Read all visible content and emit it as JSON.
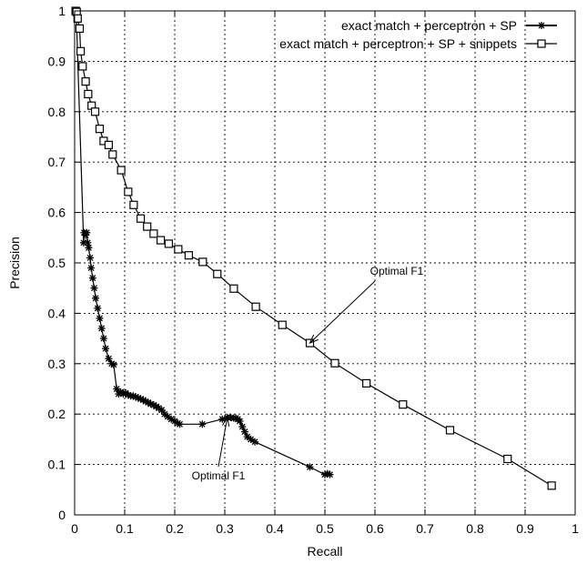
{
  "chart_data": {
    "type": "line",
    "title": "",
    "xlabel": "Recall",
    "ylabel": "Precision",
    "xlim": [
      0,
      1
    ],
    "ylim": [
      0,
      1
    ],
    "x_ticks": [
      "0",
      "0.1",
      "0.2",
      "0.3",
      "0.4",
      "0.5",
      "0.6",
      "0.7",
      "0.8",
      "0.9",
      "1"
    ],
    "y_ticks": [
      "0",
      "0.1",
      "0.2",
      "0.3",
      "0.4",
      "0.5",
      "0.6",
      "0.7",
      "0.8",
      "0.9",
      "1"
    ],
    "grid": true,
    "legend_position": "top-right",
    "series": [
      {
        "name": "exact match + perceptron + SP",
        "marker": "asterisk",
        "color": "#000000",
        "points": [
          [
            0.003,
            1.0
          ],
          [
            0.018,
            0.54
          ],
          [
            0.019,
            0.56
          ],
          [
            0.022,
            0.555
          ],
          [
            0.024,
            0.56
          ],
          [
            0.026,
            0.54
          ],
          [
            0.028,
            0.53
          ],
          [
            0.031,
            0.51
          ],
          [
            0.033,
            0.49
          ],
          [
            0.036,
            0.47
          ],
          [
            0.039,
            0.45
          ],
          [
            0.042,
            0.43
          ],
          [
            0.046,
            0.41
          ],
          [
            0.05,
            0.39
          ],
          [
            0.054,
            0.37
          ],
          [
            0.058,
            0.35
          ],
          [
            0.062,
            0.33
          ],
          [
            0.068,
            0.31
          ],
          [
            0.074,
            0.3
          ],
          [
            0.078,
            0.298
          ],
          [
            0.084,
            0.25
          ],
          [
            0.088,
            0.24
          ],
          [
            0.092,
            0.244
          ],
          [
            0.097,
            0.24
          ],
          [
            0.102,
            0.242
          ],
          [
            0.107,
            0.238
          ],
          [
            0.112,
            0.236
          ],
          [
            0.117,
            0.236
          ],
          [
            0.122,
            0.234
          ],
          [
            0.127,
            0.232
          ],
          [
            0.132,
            0.23
          ],
          [
            0.137,
            0.228
          ],
          [
            0.142,
            0.225
          ],
          [
            0.147,
            0.223
          ],
          [
            0.152,
            0.22
          ],
          [
            0.158,
            0.218
          ],
          [
            0.163,
            0.215
          ],
          [
            0.168,
            0.212
          ],
          [
            0.174,
            0.208
          ],
          [
            0.18,
            0.2
          ],
          [
            0.186,
            0.195
          ],
          [
            0.193,
            0.19
          ],
          [
            0.2,
            0.186
          ],
          [
            0.206,
            0.182
          ],
          [
            0.21,
            0.18
          ],
          [
            0.255,
            0.18
          ],
          [
            0.295,
            0.19
          ],
          [
            0.305,
            0.193
          ],
          [
            0.312,
            0.193
          ],
          [
            0.318,
            0.192
          ],
          [
            0.322,
            0.192
          ],
          [
            0.326,
            0.19
          ],
          [
            0.33,
            0.186
          ],
          [
            0.335,
            0.175
          ],
          [
            0.34,
            0.165
          ],
          [
            0.345,
            0.155
          ],
          [
            0.352,
            0.15
          ],
          [
            0.36,
            0.145
          ],
          [
            0.47,
            0.095
          ],
          [
            0.5,
            0.08
          ],
          [
            0.505,
            0.082
          ],
          [
            0.51,
            0.08
          ]
        ]
      },
      {
        "name": "exact match + perceptron + SP + snippets",
        "marker": "square",
        "color": "#000000",
        "points": [
          [
            0.002,
            1.0
          ],
          [
            0.004,
            0.998
          ],
          [
            0.006,
            0.985
          ],
          [
            0.01,
            0.965
          ],
          [
            0.012,
            0.92
          ],
          [
            0.016,
            0.89
          ],
          [
            0.022,
            0.86
          ],
          [
            0.027,
            0.835
          ],
          [
            0.034,
            0.812
          ],
          [
            0.041,
            0.8
          ],
          [
            0.05,
            0.766
          ],
          [
            0.058,
            0.742
          ],
          [
            0.068,
            0.734
          ],
          [
            0.076,
            0.715
          ],
          [
            0.093,
            0.684
          ],
          [
            0.107,
            0.641
          ],
          [
            0.118,
            0.615
          ],
          [
            0.132,
            0.588
          ],
          [
            0.145,
            0.572
          ],
          [
            0.158,
            0.558
          ],
          [
            0.172,
            0.545
          ],
          [
            0.188,
            0.538
          ],
          [
            0.207,
            0.527
          ],
          [
            0.228,
            0.515
          ],
          [
            0.256,
            0.502
          ],
          [
            0.285,
            0.478
          ],
          [
            0.318,
            0.449
          ],
          [
            0.362,
            0.413
          ],
          [
            0.415,
            0.377
          ],
          [
            0.47,
            0.341
          ],
          [
            0.52,
            0.301
          ],
          [
            0.583,
            0.261
          ],
          [
            0.656,
            0.219
          ],
          [
            0.75,
            0.168
          ],
          [
            0.865,
            0.111
          ],
          [
            0.953,
            0.058
          ]
        ]
      }
    ],
    "annotations": [
      {
        "text": "Optimal F1",
        "series": "exact match + perceptron + SP + snippets",
        "point": [
          0.47,
          0.341
        ]
      },
      {
        "text": "Optimal F1",
        "series": "exact match + perceptron + SP",
        "point": [
          0.305,
          0.193
        ]
      }
    ]
  }
}
